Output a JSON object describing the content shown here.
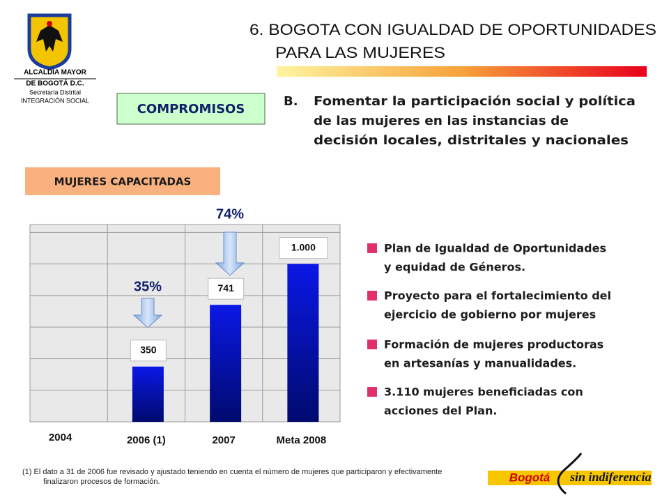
{
  "logo": {
    "lines": [
      "ALCALDÍA MAYOR",
      "DE BOGOTÁ D.C.",
      "Secretaría Distrital",
      "INTEGRACIÓN SOCIAL"
    ]
  },
  "header": {
    "title_lines": [
      "6. BOGOTA CON IGUALDAD DE OPORTUNIDADES",
      "PARA LAS MUJERES"
    ]
  },
  "section_label": "COMPROMISOS",
  "objective": {
    "letter": "B.",
    "lines": [
      "Fomentar la participación social y política",
      "de las mujeres en las instancias de",
      "decisión locales, distritales y nacionales"
    ]
  },
  "chart_data": {
    "type": "bar",
    "title": "MUJERES CAPACITADAS",
    "categories": [
      "2004",
      "2006 (1)",
      "2007",
      "Meta 2008"
    ],
    "values": [
      null,
      350,
      741,
      1000
    ],
    "value_labels": [
      null,
      "350",
      "741",
      "1.000"
    ],
    "color": "#0a18e6",
    "ylim": [
      0,
      1250
    ],
    "yticks": [
      0,
      200,
      400,
      600,
      800,
      1000,
      1200
    ],
    "grid": true,
    "annotations": [
      "35%",
      "74%"
    ]
  },
  "bullets": [
    [
      "Plan de Igualdad de Oportunidades",
      "y equidad de Géneros."
    ],
    [
      "Proyecto para el fortalecimiento del",
      "ejercicio de gobierno por mujeres"
    ],
    [
      "Formación de mujeres productoras",
      "en artesanías y manualidades."
    ],
    [
      "3.110 mujeres beneficiadas con",
      "acciones del Plan."
    ]
  ],
  "footnote": [
    "(1) El dato a 31 de 2006 fue revisado y ajustado teniendo en cuenta el número de mujeres que participaron y efectivamente",
    "finalizaron procesos de formación."
  ],
  "brand": [
    "Bogotá",
    "sin indiferencia"
  ]
}
